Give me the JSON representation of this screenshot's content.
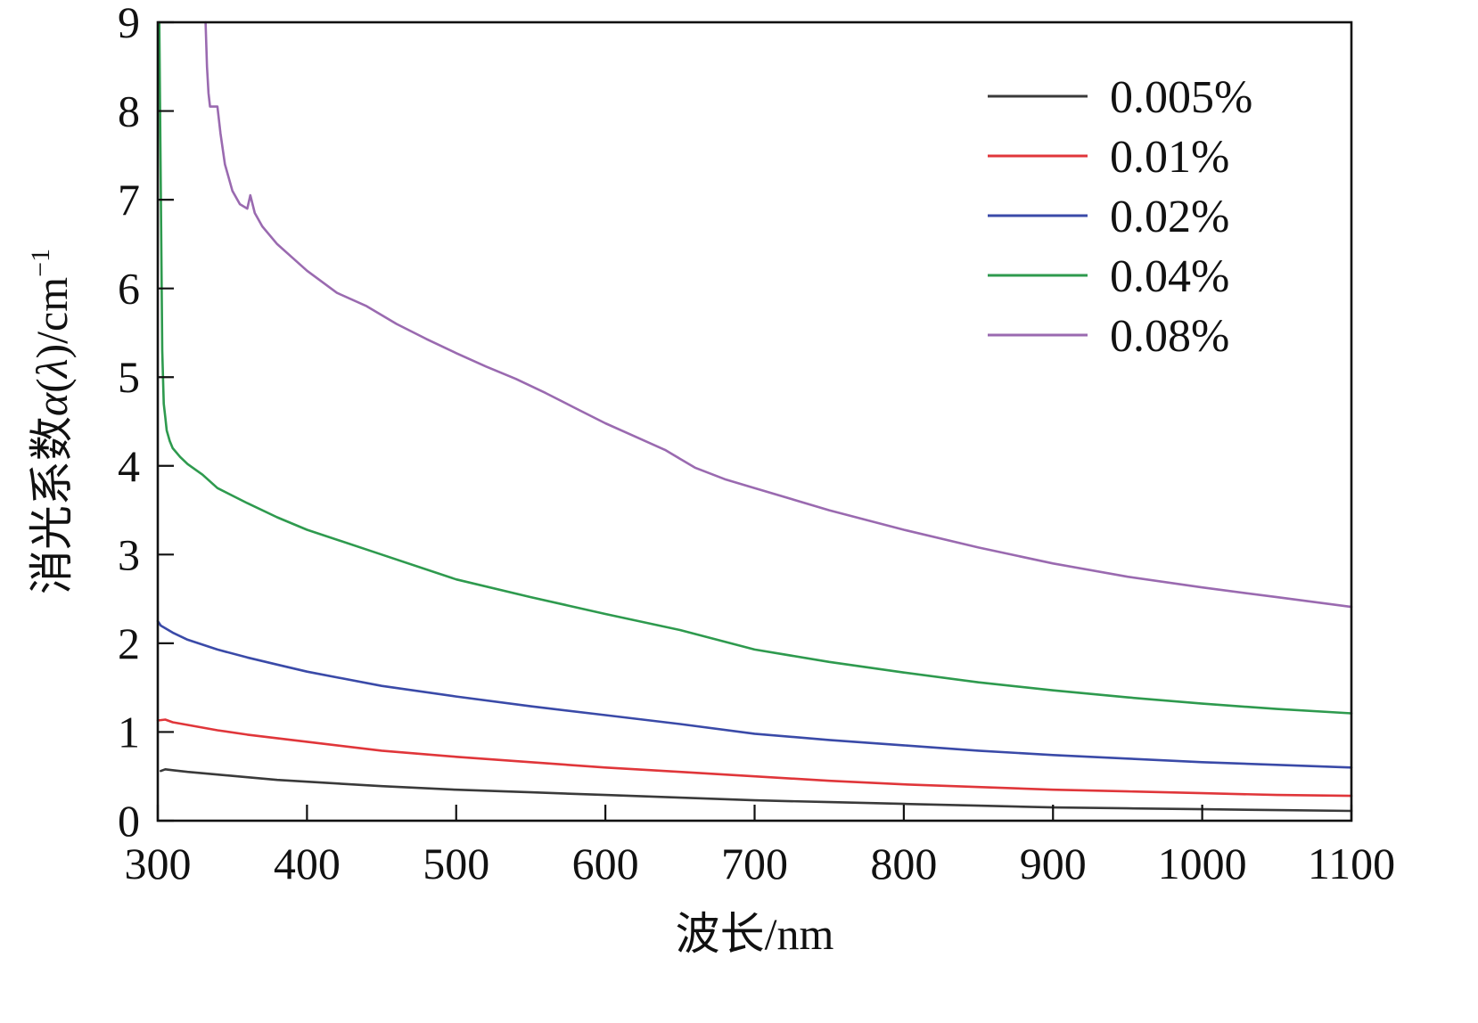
{
  "chart_data": {
    "type": "line",
    "title": "",
    "xlabel": "波长/nm",
    "ylabel": {
      "prefix": "消光系数",
      "alpha": "α",
      "open": "(",
      "lambda": "λ",
      "close": ")/cm",
      "superscript": "−1"
    },
    "xlim": [
      300,
      1100
    ],
    "ylim": [
      0,
      9
    ],
    "xticks": [
      300,
      400,
      500,
      600,
      700,
      800,
      900,
      1000,
      1100
    ],
    "yticks": [
      0,
      1,
      2,
      3,
      4,
      5,
      6,
      7,
      8,
      9
    ],
    "grid": false,
    "legend_position": "top-right",
    "series": [
      {
        "name": "0.005%",
        "color": "#3a3a3a",
        "x": [
          302,
          305,
          310,
          320,
          340,
          360,
          380,
          400,
          450,
          500,
          550,
          600,
          650,
          700,
          750,
          800,
          850,
          900,
          950,
          1000,
          1050,
          1100
        ],
        "y": [
          0.56,
          0.58,
          0.57,
          0.55,
          0.52,
          0.49,
          0.46,
          0.44,
          0.39,
          0.35,
          0.32,
          0.29,
          0.26,
          0.23,
          0.21,
          0.19,
          0.17,
          0.15,
          0.14,
          0.13,
          0.12,
          0.11
        ]
      },
      {
        "name": "0.01%",
        "color": "#e0363a",
        "x": [
          300,
          305,
          310,
          320,
          340,
          360,
          380,
          400,
          450,
          500,
          550,
          600,
          650,
          700,
          750,
          800,
          850,
          900,
          950,
          1000,
          1050,
          1100
        ],
        "y": [
          1.13,
          1.14,
          1.11,
          1.08,
          1.02,
          0.97,
          0.93,
          0.89,
          0.79,
          0.72,
          0.66,
          0.6,
          0.55,
          0.5,
          0.45,
          0.41,
          0.38,
          0.35,
          0.33,
          0.31,
          0.29,
          0.28
        ]
      },
      {
        "name": "0.02%",
        "color": "#3a4aa8",
        "x": [
          300,
          302,
          305,
          310,
          320,
          340,
          360,
          380,
          400,
          450,
          500,
          550,
          600,
          650,
          700,
          750,
          800,
          850,
          900,
          950,
          1000,
          1050,
          1100
        ],
        "y": [
          2.25,
          2.2,
          2.17,
          2.12,
          2.04,
          1.93,
          1.84,
          1.76,
          1.68,
          1.52,
          1.4,
          1.29,
          1.19,
          1.09,
          0.98,
          0.91,
          0.85,
          0.79,
          0.74,
          0.7,
          0.66,
          0.63,
          0.6
        ]
      },
      {
        "name": "0.04%",
        "color": "#2e9a4e",
        "x": [
          301,
          302,
          303,
          304,
          305,
          306,
          308,
          310,
          315,
          320,
          330,
          340,
          360,
          380,
          400,
          450,
          500,
          550,
          600,
          650,
          700,
          750,
          800,
          850,
          900,
          950,
          1000,
          1050,
          1100
        ],
        "y": [
          9.0,
          7.2,
          5.3,
          4.7,
          4.55,
          4.4,
          4.28,
          4.2,
          4.1,
          4.02,
          3.9,
          3.75,
          3.58,
          3.42,
          3.28,
          3.0,
          2.72,
          2.52,
          2.33,
          2.15,
          1.93,
          1.79,
          1.67,
          1.56,
          1.47,
          1.39,
          1.32,
          1.26,
          1.21
        ]
      },
      {
        "name": "0.08%",
        "color": "#9a6ab0",
        "x": [
          332,
          333,
          334,
          335,
          337,
          340,
          342,
          345,
          350,
          355,
          360,
          362,
          365,
          370,
          380,
          390,
          400,
          420,
          440,
          460,
          480,
          500,
          520,
          540,
          560,
          580,
          600,
          620,
          640,
          660,
          680,
          700,
          750,
          800,
          850,
          900,
          950,
          1000,
          1050,
          1100
        ],
        "y": [
          9.0,
          8.5,
          8.2,
          8.05,
          8.05,
          8.05,
          7.75,
          7.4,
          7.1,
          6.95,
          6.9,
          7.05,
          6.85,
          6.7,
          6.5,
          6.35,
          6.2,
          5.95,
          5.8,
          5.6,
          5.43,
          5.27,
          5.12,
          4.98,
          4.82,
          4.65,
          4.48,
          4.33,
          4.18,
          3.98,
          3.85,
          3.75,
          3.5,
          3.28,
          3.08,
          2.9,
          2.75,
          2.63,
          2.52,
          2.41
        ]
      }
    ]
  }
}
